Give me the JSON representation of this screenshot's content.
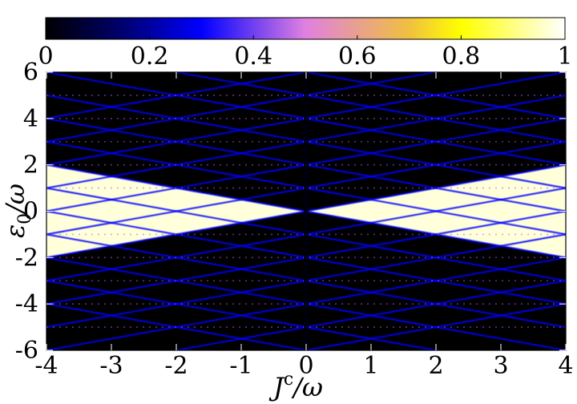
{
  "chart_data": {
    "type": "heatmap",
    "title": "",
    "xlabel": "J^c/ω",
    "ylabel": "ε_0/ω",
    "xlabel_parts": {
      "base": "J",
      "sup": "c",
      "rest": "/ω"
    },
    "ylabel_parts": {
      "base": "ε",
      "sub": "0",
      "rest": "/ω"
    },
    "xlim": [
      -4,
      4
    ],
    "ylim": [
      -6,
      6
    ],
    "xticks": [
      -4,
      -3,
      -2,
      -1,
      0,
      1,
      2,
      3,
      4
    ],
    "xtick_labels": [
      "-4",
      "-3",
      "-2",
      "-1",
      "0",
      "1",
      "2",
      "3",
      "4"
    ],
    "yticks": [
      -6,
      -4,
      -2,
      0,
      2,
      4,
      6
    ],
    "ytick_labels": [
      "-6",
      "-4",
      "-2",
      "0",
      "2",
      "4",
      "6"
    ],
    "colorbar": {
      "range": [
        0,
        1
      ],
      "ticks": [
        0,
        0.2,
        0.4,
        0.6,
        0.8,
        1
      ],
      "tick_labels": [
        "0",
        "0.2",
        "0.4",
        "0.6",
        "0.8",
        "1"
      ],
      "colormap_stops": [
        {
          "v": 0.0,
          "color": "#000000"
        },
        {
          "v": 0.15,
          "color": "#000070"
        },
        {
          "v": 0.3,
          "color": "#0000ff"
        },
        {
          "v": 0.5,
          "color": "#e080e0"
        },
        {
          "v": 0.7,
          "color": "#f0c040"
        },
        {
          "v": 0.8,
          "color": "#ffff00"
        },
        {
          "v": 1.0,
          "color": "#ffffff"
        }
      ]
    },
    "regions": [
      {
        "name": "high-plateau-left",
        "vertices": [
          [
            -4,
            2
          ],
          [
            -4,
            -2
          ],
          [
            0,
            0
          ]
        ],
        "value": 0.97
      },
      {
        "name": "high-plateau-right",
        "vertices": [
          [
            4,
            2
          ],
          [
            4,
            -2
          ],
          [
            0,
            0
          ]
        ],
        "value": 0.97
      }
    ],
    "resonance_lines": {
      "diagonal_slopes": [
        0.5,
        -0.5
      ],
      "diagonal_offsets": [
        -6,
        -5,
        -4,
        -3,
        -2,
        -1,
        0,
        1,
        2,
        3,
        4,
        5,
        6
      ],
      "diagonal_value": 0.3,
      "horizontal_levels": [
        -5,
        -4,
        -3,
        -2,
        -1,
        1,
        2,
        3,
        4,
        5
      ],
      "horizontal_value": 0.45,
      "vertical_dark_band_x": 0
    },
    "background_value": 0.02
  }
}
